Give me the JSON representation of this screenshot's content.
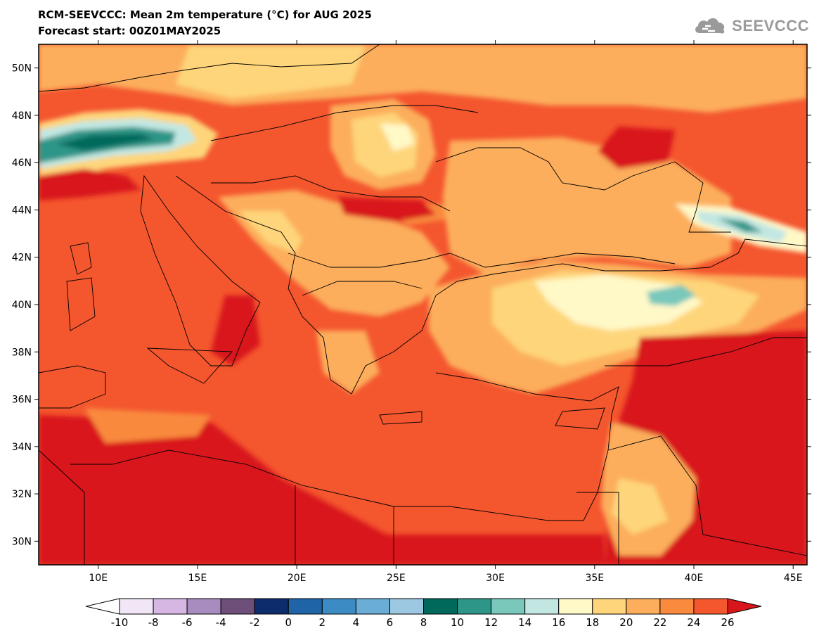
{
  "header": {
    "title": "RCM-SEEVCCC: Mean 2m temperature (°C) for AUG 2025",
    "subtitle": "Forecast start: 00Z01MAY2025"
  },
  "logo": {
    "text": "SEEVCCC",
    "icon": "cloud-icon",
    "color": "#9a9a9a"
  },
  "map_data": {
    "type": "map",
    "region": "Southeast Europe / Eastern Mediterranean",
    "lon_range": [
      7,
      45.7
    ],
    "lat_range": [
      29,
      51
    ],
    "lat_ticks": [
      {
        "value": 50,
        "label": "50N"
      },
      {
        "value": 48,
        "label": "48N"
      },
      {
        "value": 46,
        "label": "46N"
      },
      {
        "value": 44,
        "label": "44N"
      },
      {
        "value": 42,
        "label": "42N"
      },
      {
        "value": 40,
        "label": "40N"
      },
      {
        "value": 38,
        "label": "38N"
      },
      {
        "value": 36,
        "label": "36N"
      },
      {
        "value": 34,
        "label": "34N"
      },
      {
        "value": 32,
        "label": "32N"
      },
      {
        "value": 30,
        "label": "30N"
      }
    ],
    "lon_ticks": [
      {
        "value": 10,
        "label": "10E"
      },
      {
        "value": 15,
        "label": "15E"
      },
      {
        "value": 20,
        "label": "20E"
      },
      {
        "value": 25,
        "label": "25E"
      },
      {
        "value": 30,
        "label": "30E"
      },
      {
        "value": 35,
        "label": "35E"
      },
      {
        "value": 40,
        "label": "40E"
      },
      {
        "value": 45,
        "label": "45E"
      }
    ]
  },
  "colorbar": {
    "levels": [
      "-10",
      "-8",
      "-6",
      "-4",
      "-2",
      "0",
      "2",
      "4",
      "6",
      "8",
      "10",
      "12",
      "14",
      "16",
      "18",
      "20",
      "22",
      "24",
      "26"
    ],
    "colors": [
      "#f0e6f5",
      "#d6b7e3",
      "#a88bbf",
      "#6e4f7a",
      "#0c2c6b",
      "#1f64a6",
      "#3d8bc4",
      "#6aaed8",
      "#9cc8e2",
      "#00695c",
      "#2e9688",
      "#79c8bb",
      "#c2e7e2",
      "#fff8c7",
      "#fed57a",
      "#fcae5c",
      "#f98a3e",
      "#f4562e"
    ],
    "under_color": "#ffffff",
    "over_color": "#d8161b"
  }
}
